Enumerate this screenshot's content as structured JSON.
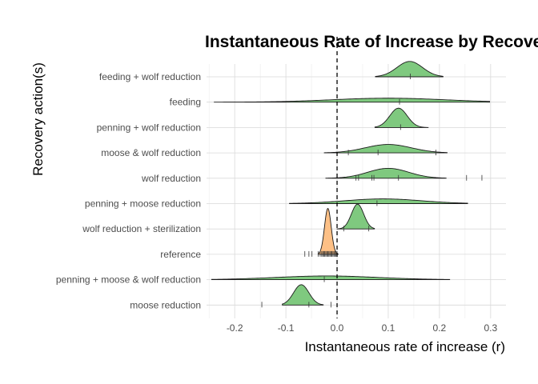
{
  "chart_data": {
    "type": "ridgeline",
    "title": "Instantaneous Rate of Increase by Recovery",
    "xlabel": "Instantaneous rate of increase (r)",
    "ylabel": "Recovery action(s)",
    "xlim": [
      -0.255,
      0.33
    ],
    "x_ticks": [
      -0.2,
      -0.1,
      0.0,
      0.1,
      0.2,
      0.3
    ],
    "x_tick_labels": [
      "-0.2",
      "-0.1",
      "0.0",
      "0.1",
      "0.2",
      "0.3"
    ],
    "reference_line_x": 0.0,
    "colors": {
      "treatment": "#7fc97f",
      "reference": "#fdc086",
      "outline": "#1a1a1a"
    },
    "series": [
      {
        "name": "feeding + wolf reduction",
        "group": "treatment",
        "mean": 0.142,
        "sd": 0.025,
        "min": 0.075,
        "max": 0.207,
        "height": 0.62,
        "points": [
          0.143
        ]
      },
      {
        "name": "feeding",
        "group": "treatment",
        "mean": 0.1,
        "sd": 0.11,
        "min": -0.24,
        "max": 0.298,
        "height": 0.16,
        "points": [
          0.122
        ]
      },
      {
        "name": "penning + wolf reduction",
        "group": "treatment",
        "mean": 0.12,
        "sd": 0.017,
        "min": 0.074,
        "max": 0.178,
        "height": 0.78,
        "points": [
          0.124
        ]
      },
      {
        "name": "moose & wolf reduction",
        "group": "treatment",
        "mean": 0.1,
        "sd": 0.045,
        "min": -0.025,
        "max": 0.215,
        "height": 0.34,
        "points": [
          0.022,
          0.08,
          0.193
        ]
      },
      {
        "name": "wolf reduction",
        "group": "treatment",
        "mean": 0.1,
        "sd": 0.04,
        "min": -0.022,
        "max": 0.213,
        "height": 0.4,
        "points": [
          0.037,
          0.042,
          0.068,
          0.072,
          0.12,
          0.253,
          0.283
        ]
      },
      {
        "name": "penning + moose reduction",
        "group": "treatment",
        "mean": 0.09,
        "sd": 0.075,
        "min": -0.093,
        "max": 0.255,
        "height": 0.19,
        "points": [
          0.078
        ]
      },
      {
        "name": "wolf reduction + sterilization",
        "group": "treatment",
        "mean": 0.04,
        "sd": 0.012,
        "min": 0.0,
        "max": 0.073,
        "height": 1.0,
        "points": [
          0.013,
          0.062
        ]
      },
      {
        "name": "reference",
        "group": "reference",
        "mean": -0.018,
        "sd": 0.0065,
        "min": -0.037,
        "max": 0.002,
        "height": 1.85,
        "points": [
          -0.063,
          -0.055,
          -0.049,
          -0.037,
          -0.033,
          -0.03,
          -0.028,
          -0.026,
          -0.024,
          -0.022,
          -0.02,
          -0.018,
          -0.016,
          -0.014,
          -0.012,
          -0.01,
          -0.008,
          -0.006,
          -0.004,
          -0.002,
          0.0
        ]
      },
      {
        "name": "penning + moose & wolf reduction",
        "group": "treatment",
        "mean": -0.02,
        "sd": 0.1,
        "min": -0.245,
        "max": 0.22,
        "height": 0.15,
        "points": [
          -0.025
        ]
      },
      {
        "name": "moose reduction",
        "group": "treatment",
        "mean": -0.07,
        "sd": 0.015,
        "min": -0.107,
        "max": -0.027,
        "height": 0.82,
        "points": [
          -0.147,
          -0.055,
          -0.012
        ]
      }
    ]
  }
}
